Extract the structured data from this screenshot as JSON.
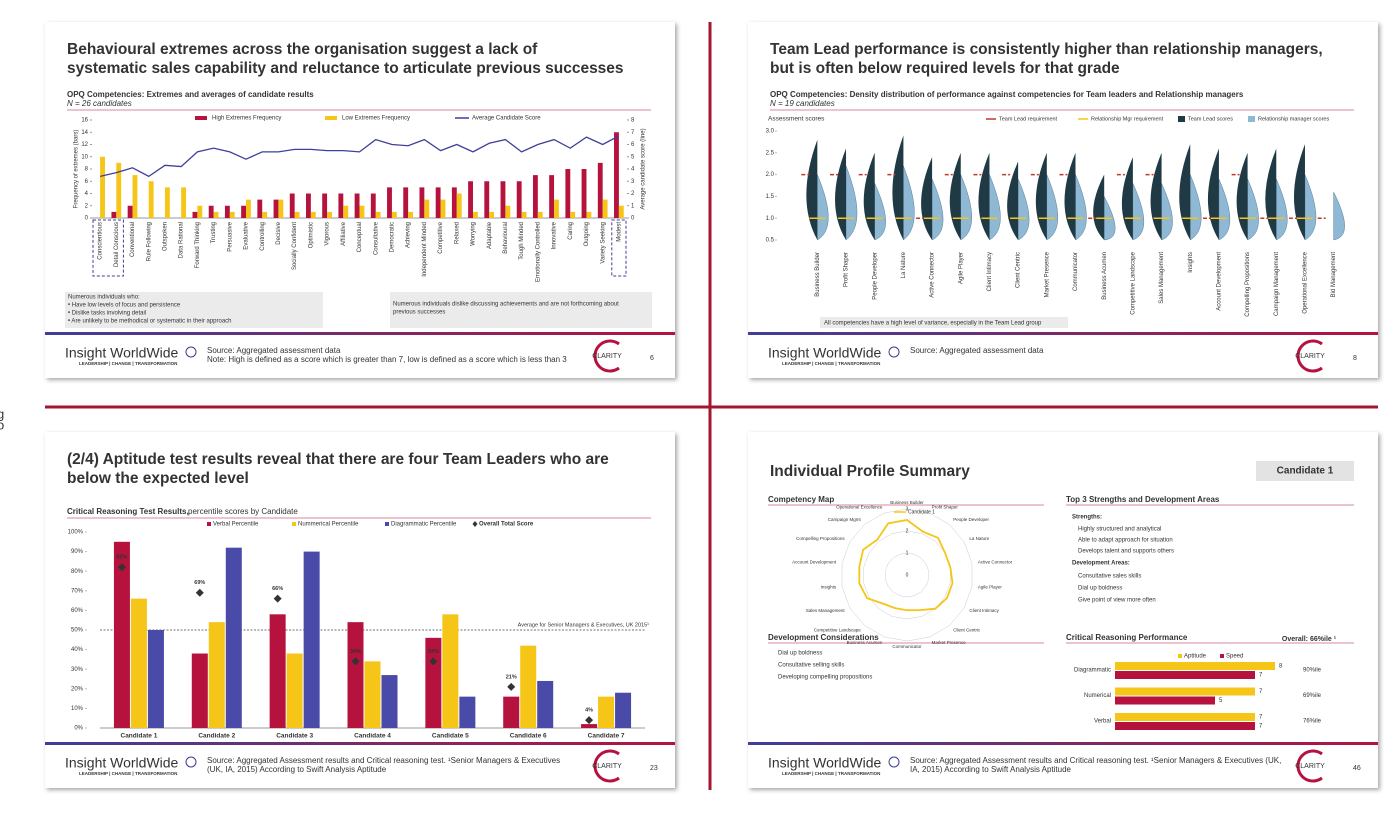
{
  "edge_fragments": [
    "g",
    "o"
  ],
  "slides": [
    {
      "title_lines": [
        "Behavioural extremes across the organisation suggest a lack of",
        "systematic sales capability and reluctance to articulate previous successes"
      ],
      "subtitle": "OPQ Competencies: Extremes and averages of candidate results",
      "note": "N = 26 candidates",
      "chart": {
        "type": "bar_line",
        "y_label": "Frequency of extremes (bars)",
        "y2_label": "Average candidate score (line)",
        "categories": [
          "Conscientious",
          "Detail Conscious",
          "Conventional",
          "Rule Following",
          "Outspoken",
          "Data Rational",
          "Forward Thinking",
          "Trusting",
          "Persuasive",
          "Evaluative",
          "Controlling",
          "Decisive",
          "Socially Confident",
          "Optimistic",
          "Vigorous",
          "Affiliative",
          "Conceptual",
          "Consultative",
          "Democratic",
          "Achieving",
          "Independent Minded",
          "Competitive",
          "Relaxed",
          "Worrying",
          "Adaptable",
          "Behavioural",
          "Tough Minded",
          "Emotionally Controlled",
          "Innovative",
          "Caring",
          "Outgoing",
          "Variety Seeking",
          "Modest"
        ],
        "series": [
          {
            "name": "High Extremes Frequency",
            "color": "#b5123e",
            "values": [
              0,
              1,
              2,
              0,
              0,
              0,
              1,
              2,
              2,
              2,
              3,
              3,
              4,
              4,
              4,
              4,
              4,
              4,
              5,
              5,
              5,
              5,
              5,
              6,
              6,
              6,
              6,
              7,
              7,
              8,
              8,
              9,
              14
            ]
          },
          {
            "name": "Low Extremes Frequency",
            "color": "#f5c518",
            "values": [
              10,
              9,
              7,
              6,
              5,
              5,
              2,
              1,
              1,
              3,
              1,
              3,
              1,
              1,
              1,
              2,
              2,
              1,
              1,
              1,
              3,
              3,
              4,
              1,
              1,
              2,
              1,
              1,
              3,
              1,
              1,
              3,
              2
            ]
          },
          {
            "name": "Average Candidate Score",
            "color": "#3f3f9a",
            "axis": "y2",
            "values": [
              3.4,
              3.7,
              4.1,
              3.4,
              4.3,
              4.2,
              5.4,
              5.7,
              5.4,
              4.8,
              5.4,
              5.4,
              5.6,
              5.6,
              5.5,
              5.5,
              5.4,
              6.4,
              6.0,
              5.9,
              6.4,
              5.5,
              6.0,
              5.4,
              6.1,
              6.4,
              5.4,
              6.0,
              6.4,
              5.7,
              6.6,
              6.0,
              6.7
            ]
          }
        ],
        "ylim": [
          0,
          16
        ],
        "yticks": [
          0,
          2,
          4,
          6,
          8,
          10,
          12,
          14,
          16
        ],
        "y2lim": [
          0,
          8
        ],
        "y2ticks": [
          0,
          1,
          2,
          3,
          4,
          5,
          6,
          7,
          8
        ]
      },
      "callouts": [
        [
          "Numerous individuals who:",
          "•  Have low levels of focus and persistence",
          "•  Dislike tasks involving detail",
          "•  Are unlikely to be methodical or systematic in their approach"
        ],
        [
          "Numerous individuals dislike discussing achievements and are not forthcoming about",
          "previous successes"
        ]
      ],
      "footer": {
        "brand": "Insight WorldWide",
        "tagline": "LEADERSHIP | CHANGE | TRANSFORMATION",
        "source_lines": [
          "Source: Aggregated assessment data",
          "Note: High is defined as a score which is greater than 7, low is defined as a score which is less than 3"
        ],
        "clarity": "CLARITY",
        "page": "6"
      }
    },
    {
      "title_lines": [
        "Team Lead performance is consistently higher than relationship managers,",
        "but is often below required levels for that grade"
      ],
      "subtitle": "OPQ Competencies: Density distribution of performance against competencies for Team leaders and Relationship managers",
      "note": "N = 19 candidates",
      "chart": {
        "type": "violin",
        "y_label": "Assessment scores",
        "categories": [
          "Business Builder",
          "Profit Shaper",
          "People Developer",
          "La Nature",
          "Active Connector",
          "Agile Player",
          "Client Intimacy",
          "Client Centric",
          "Market Presence",
          "Communicator",
          "Business Acumen",
          "Competitive Landscape",
          "Sales Management",
          "Insights",
          "Account Development",
          "Compelling Propositions",
          "Campaign Management",
          "Operational Excellence",
          "Bid Management"
        ],
        "series": [
          {
            "name": "Team Lead requirement",
            "color": "#c0392b",
            "values": [
              2,
              2,
              2,
              2,
              1,
              2,
              2,
              2,
              2,
              2,
              1,
              2,
              2,
              null,
              1,
              2,
              1,
              1,
              1
            ]
          },
          {
            "name": "Relationship Mgr requirement",
            "color": "#f5c518",
            "values": [
              1,
              1,
              1,
              1,
              1,
              1,
              1,
              1,
              1,
              1,
              1,
              1,
              1,
              1,
              1,
              1,
              1,
              1,
              null
            ]
          },
          {
            "name": "Team Lead scores",
            "color": "#1f3a44",
            "values": [
              2.8,
              2.6,
              2.5,
              2.9,
              2.4,
              2.5,
              2.5,
              2.3,
              2.5,
              2.5,
              2.0,
              2.4,
              2.5,
              2.7,
              2.6,
              2.5,
              2.6,
              2.7,
              null
            ]
          },
          {
            "name": "Relationship manager scores",
            "color": "#8fb8d4",
            "values": [
              2.0,
              2.2,
              1.8,
              2.2,
              1.9,
              2.0,
              2.0,
              1.9,
              2.0,
              2.0,
              1.5,
              1.8,
              1.8,
              2.0,
              1.9,
              1.9,
              1.9,
              2.0,
              1.6
            ]
          }
        ],
        "ylim": [
          0.5,
          3.0
        ],
        "yticks": [
          0.5,
          {
            "value": 1,
            "label": "1.0"
          },
          1.5,
          {
            "value": 2,
            "label": "2.0"
          },
          2.5,
          {
            "value": 3,
            "label": "3.0"
          }
        ]
      },
      "callouts": [
        [
          "All competencies have a high level of variance, especially in the Team Lead group"
        ]
      ],
      "footer": {
        "brand": "Insight WorldWide",
        "tagline": "LEADERSHIP | CHANGE | TRANSFORMATION",
        "source_lines": [
          "Source: Aggregated assessment data"
        ],
        "clarity": "CLARITY",
        "page": "8"
      }
    },
    {
      "title_lines": [
        "(2/4) Aptitude test results reveal that there are four Team Leaders who are",
        "below the expected level"
      ],
      "subtitle": "Critical Reasoning Test Results,",
      "subtitle_rest": "percentile scores by Candidate",
      "chart": {
        "type": "grouped_bar",
        "categories": [
          "Candidate 1",
          "Candidate 2",
          "Candidate 3",
          "Candidate 4",
          "Candidate 5",
          "Candidate 6",
          "Candidate 7"
        ],
        "series": [
          {
            "name": "Verbal Percentile",
            "color": "#b5123e",
            "values": [
              95,
              38,
              58,
              54,
              46,
              16,
              2
            ]
          },
          {
            "name": "Nummerical Percentile",
            "color": "#f5c518",
            "values": [
              66,
              54,
              38,
              34,
              58,
              42,
              16
            ]
          },
          {
            "name": "Diagrammatic Percentile",
            "color": "#4a4aa8",
            "values": [
              50,
              92,
              90,
              27,
              16,
              24,
              18
            ]
          },
          {
            "name": "Overall Total Score",
            "color": "#333333",
            "values": [
              82,
              69,
              66,
              34,
              34,
              21,
              4
            ],
            "value_labels": [
              "82%",
              "69%",
              "66%",
              "34%",
              "34%",
              "21%",
              "4%"
            ]
          }
        ],
        "reference_line": {
          "value": 50,
          "label": "Average for Senior Managers & Executives, UK 2015¹"
        },
        "ylim": [
          0,
          100
        ],
        "yticks": [
          {
            "value": 0,
            "label": "0%"
          },
          {
            "value": 10,
            "label": "10%"
          },
          {
            "value": 20,
            "label": "20%"
          },
          {
            "value": 30,
            "label": "30%"
          },
          {
            "value": 40,
            "label": "40%"
          },
          {
            "value": 50,
            "label": "50%"
          },
          {
            "value": 60,
            "label": "60%"
          },
          {
            "value": 70,
            "label": "70%"
          },
          {
            "value": 80,
            "label": "80%"
          },
          {
            "value": 90,
            "label": "90%"
          },
          {
            "value": 100,
            "label": "100%"
          }
        ]
      },
      "footer": {
        "brand": "Insight WorldWide",
        "tagline": "LEADERSHIP | CHANGE | TRANSFORMATION",
        "source_lines": [
          "Source: Aggregated Assessment results and Critical reasoning test. ¹Senior Managers & Executives",
          "(UK, IA, 2015) According to Swift Analysis Aptitude"
        ],
        "clarity": "CLARITY",
        "page": "23"
      }
    },
    {
      "title_lines": [
        "Individual Profile Summary"
      ],
      "badge": "Candidate 1",
      "competency_map": {
        "heading": "Competency Map",
        "type": "radar",
        "series_name": "Candidate 1",
        "color": "#f5c518",
        "categories": [
          "Business Builder",
          "Profit Shaper",
          "People Developer",
          "La Nature",
          "Active Connector",
          "Agile Player",
          "Client Intimacy",
          "Client Centric",
          "Market Presence",
          "Communicator",
          "Business Acumen",
          "Competitive Landscape",
          "Sales Management",
          "Insights",
          "Account Development",
          "Compelling Propositions",
          "Campaign Mgmt",
          "Operational Excellence"
        ],
        "values": [
          2.5,
          2.1,
          2.2,
          2.0,
          2.0,
          2.1,
          2.1,
          2.0,
          1.7,
          1.6,
          1.6,
          1.7,
          2.1,
          2.2,
          2.2,
          2.3,
          2.1,
          2.5
        ],
        "rlim": [
          0,
          3
        ],
        "rticks": [
          0,
          1,
          2,
          3
        ]
      },
      "strengths": {
        "heading": "Top 3 Strengths and Development Areas",
        "strengths_label": "Strengths:",
        "strengths": [
          "Highly structured and analytical",
          "Able to adapt approach for situation",
          "Develops talent and supports others"
        ],
        "development_label": "Development Areas:",
        "development": [
          "Consultative sales skills",
          "Dial up boldness",
          "Give point of view more often"
        ]
      },
      "considerations": {
        "heading": "Development Considerations",
        "items": [
          "Dial up boldness",
          "Consultative selling skills",
          "Developing compelling propositions"
        ]
      },
      "reasoning": {
        "heading": "Critical Reasoning Performance",
        "overall_label": "Overall:",
        "overall": "66%ile ¹",
        "type": "hbar",
        "categories": [
          "Diagrammatic",
          "Numerical",
          "Verbal"
        ],
        "series": [
          {
            "name": "Aptitude",
            "color": "#f5c518",
            "values": [
              8,
              7,
              7
            ]
          },
          {
            "name": "Speed",
            "color": "#b5123e",
            "values": [
              7,
              5,
              7
            ]
          }
        ],
        "percentiles": [
          "90%ile",
          "69%ile",
          "76%ile"
        ],
        "xlim": [
          0,
          8
        ]
      },
      "footer": {
        "brand": "Insight WorldWide",
        "tagline": "LEADERSHIP | CHANGE | TRANSFORMATION",
        "source_lines": [
          "Source: Aggregated Assessment results and Critical reasoning test. ¹Senior Managers & Executives (UK,",
          "IA, 2015) According to Swift Analysis Aptitude"
        ],
        "clarity": "CLARITY",
        "page": "46"
      }
    }
  ]
}
